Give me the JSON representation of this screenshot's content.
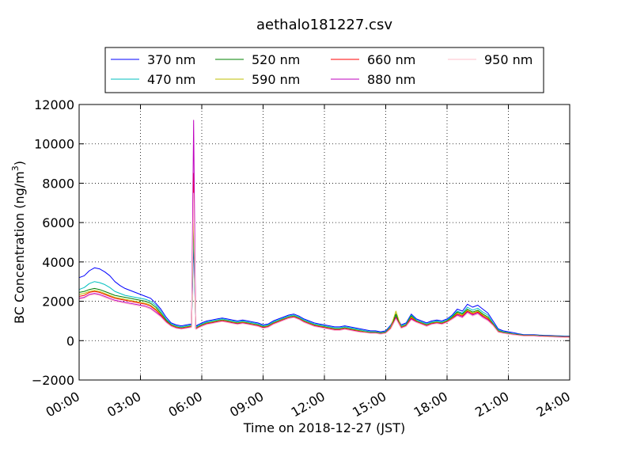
{
  "chart_data": {
    "type": "line",
    "title": "aethalo181227.csv",
    "xlabel": "Time on 2018-12-27 (JST)",
    "ylabel": "BC Concentration (ng/m",
    "ylabel_sup": "3",
    "ylabel_end": ")",
    "xlim": [
      0,
      24
    ],
    "ylim": [
      -2000,
      12000
    ],
    "x_ticks": [
      0,
      3,
      6,
      9,
      12,
      15,
      18,
      21,
      24
    ],
    "x_tick_labels": [
      "00:00",
      "03:00",
      "06:00",
      "09:00",
      "12:00",
      "15:00",
      "18:00",
      "21:00",
      "24:00"
    ],
    "y_ticks": [
      -2000,
      0,
      2000,
      4000,
      6000,
      8000,
      10000,
      12000
    ],
    "y_tick_labels": [
      "−2000",
      "0",
      "2000",
      "4000",
      "6000",
      "8000",
      "10000",
      "12000"
    ],
    "grid": true,
    "legend_position": "top (above plot)",
    "x": [
      0.0,
      0.25,
      0.5,
      0.75,
      1.0,
      1.25,
      1.5,
      1.75,
      2.0,
      2.25,
      2.5,
      2.75,
      3.0,
      3.25,
      3.5,
      3.75,
      4.0,
      4.25,
      4.5,
      4.75,
      5.0,
      5.25,
      5.5,
      5.6,
      5.7,
      5.75,
      5.8,
      5.9,
      6.0,
      6.25,
      6.5,
      6.75,
      7.0,
      7.25,
      7.5,
      7.75,
      8.0,
      8.25,
      8.5,
      8.75,
      9.0,
      9.25,
      9.5,
      9.75,
      10.0,
      10.25,
      10.5,
      10.75,
      11.0,
      11.25,
      11.5,
      11.75,
      12.0,
      12.25,
      12.5,
      12.75,
      13.0,
      13.25,
      13.5,
      13.75,
      14.0,
      14.25,
      14.5,
      14.75,
      15.0,
      15.25,
      15.5,
      15.75,
      16.0,
      16.25,
      16.5,
      16.75,
      17.0,
      17.25,
      17.5,
      17.75,
      18.0,
      18.25,
      18.5,
      18.75,
      19.0,
      19.25,
      19.5,
      19.75,
      20.0,
      20.25,
      20.5,
      20.75,
      21.0,
      21.25,
      21.5,
      21.75,
      22.0,
      22.25,
      22.5,
      22.75,
      23.0,
      23.25,
      23.5,
      23.75,
      24.0
    ],
    "series": [
      {
        "name": "370 nm",
        "color": "#0000ff",
        "values": [
          3200,
          3300,
          3550,
          3700,
          3650,
          3500,
          3300,
          3000,
          2800,
          2650,
          2550,
          2450,
          2350,
          2250,
          2150,
          1900,
          1600,
          1200,
          900,
          800,
          750,
          800,
          850,
          5000,
          800,
          750,
          800,
          850,
          900,
          1000,
          1050,
          1100,
          1150,
          1100,
          1050,
          1000,
          1050,
          1000,
          950,
          900,
          800,
          850,
          1000,
          1100,
          1200,
          1300,
          1350,
          1250,
          1100,
          1000,
          900,
          850,
          800,
          750,
          700,
          700,
          750,
          700,
          650,
          600,
          550,
          500,
          500,
          450,
          500,
          800,
          1300,
          800,
          900,
          1350,
          1100,
          1000,
          900,
          1000,
          1050,
          1000,
          1100,
          1300,
          1600,
          1500,
          1850,
          1700,
          1800,
          1600,
          1400,
          1000,
          600,
          500,
          450,
          400,
          350,
          300,
          300,
          300,
          280,
          270,
          260,
          250,
          240,
          230,
          230
        ]
      },
      {
        "name": "470 nm",
        "color": "#00bfbf",
        "values": [
          2600,
          2700,
          2900,
          3000,
          2950,
          2850,
          2700,
          2500,
          2400,
          2300,
          2250,
          2200,
          2150,
          2100,
          2000,
          1800,
          1500,
          1100,
          850,
          750,
          700,
          750,
          800,
          5600,
          700,
          700,
          750,
          800,
          850,
          950,
          1000,
          1050,
          1100,
          1050,
          1000,
          950,
          1000,
          950,
          900,
          850,
          750,
          800,
          950,
          1050,
          1150,
          1250,
          1300,
          1200,
          1050,
          950,
          850,
          800,
          750,
          700,
          650,
          650,
          700,
          650,
          600,
          550,
          500,
          450,
          450,
          400,
          450,
          750,
          1250,
          750,
          850,
          1300,
          1050,
          950,
          850,
          950,
          1000,
          950,
          1050,
          1250,
          1500,
          1400,
          1700,
          1550,
          1650,
          1450,
          1300,
          900,
          550,
          450,
          400,
          350,
          320,
          280,
          280,
          280,
          260,
          250,
          240,
          230,
          220,
          210,
          210
        ]
      },
      {
        "name": "520 nm",
        "color": "#008000",
        "values": [
          2450,
          2500,
          2600,
          2650,
          2600,
          2500,
          2400,
          2300,
          2250,
          2200,
          2150,
          2100,
          2050,
          2000,
          1900,
          1700,
          1400,
          1050,
          800,
          700,
          650,
          700,
          750,
          6200,
          650,
          650,
          700,
          750,
          800,
          900,
          950,
          1000,
          1050,
          1000,
          950,
          900,
          950,
          900,
          850,
          800,
          700,
          750,
          900,
          1000,
          1100,
          1200,
          1250,
          1150,
          1000,
          900,
          800,
          750,
          700,
          650,
          600,
          600,
          650,
          600,
          550,
          500,
          450,
          420,
          420,
          380,
          420,
          700,
          1350,
          700,
          800,
          1250,
          1000,
          900,
          800,
          900,
          950,
          900,
          1000,
          1200,
          1450,
          1350,
          1600,
          1450,
          1550,
          1350,
          1200,
          850,
          500,
          420,
          380,
          330,
          300,
          270,
          270,
          270,
          250,
          240,
          230,
          220,
          210,
          200,
          200
        ]
      },
      {
        "name": "590 nm",
        "color": "#bfbf00",
        "values": [
          2350,
          2400,
          2500,
          2550,
          2500,
          2400,
          2300,
          2200,
          2150,
          2100,
          2050,
          2000,
          1950,
          1900,
          1800,
          1600,
          1350,
          1000,
          780,
          680,
          630,
          680,
          730,
          6800,
          630,
          630,
          680,
          730,
          780,
          880,
          930,
          980,
          1030,
          980,
          930,
          880,
          930,
          880,
          830,
          780,
          680,
          730,
          880,
          980,
          1080,
          1180,
          1230,
          1130,
          980,
          880,
          780,
          730,
          680,
          630,
          580,
          580,
          630,
          580,
          530,
          480,
          430,
          400,
          400,
          360,
          400,
          700,
          1500,
          680,
          780,
          1200,
          980,
          880,
          780,
          880,
          930,
          880,
          980,
          1150,
          1400,
          1300,
          1550,
          1400,
          1500,
          1300,
          1150,
          820,
          480,
          400,
          360,
          320,
          290,
          260,
          260,
          260,
          240,
          230,
          220,
          210,
          200,
          190,
          190
        ]
      },
      {
        "name": "660 nm",
        "color": "#ff0000",
        "values": [
          2250,
          2300,
          2450,
          2500,
          2450,
          2350,
          2250,
          2150,
          2100,
          2050,
          2000,
          1950,
          1900,
          1850,
          1750,
          1550,
          1300,
          980,
          760,
          660,
          620,
          660,
          710,
          8500,
          620,
          620,
          660,
          710,
          760,
          860,
          910,
          960,
          1010,
          960,
          910,
          860,
          910,
          860,
          810,
          760,
          660,
          710,
          860,
          960,
          1060,
          1160,
          1210,
          1110,
          960,
          860,
          760,
          710,
          660,
          610,
          560,
          560,
          610,
          560,
          510,
          460,
          420,
          390,
          390,
          350,
          390,
          650,
          1200,
          660,
          760,
          1150,
          960,
          860,
          760,
          860,
          910,
          860,
          960,
          1120,
          1350,
          1250,
          1500,
          1350,
          1450,
          1250,
          1100,
          800,
          460,
          390,
          350,
          310,
          280,
          250,
          250,
          250,
          230,
          220,
          210,
          200,
          190,
          180,
          180
        ]
      },
      {
        "name": "880 nm",
        "color": "#bf00bf",
        "values": [
          2150,
          2200,
          2350,
          2400,
          2350,
          2250,
          2150,
          2050,
          2000,
          1950,
          1900,
          1850,
          1800,
          1750,
          1650,
          1450,
          1250,
          950,
          740,
          640,
          600,
          640,
          690,
          11200,
          600,
          600,
          640,
          690,
          740,
          840,
          890,
          940,
          990,
          940,
          890,
          840,
          890,
          840,
          790,
          740,
          640,
          690,
          840,
          940,
          1040,
          1140,
          1190,
          1090,
          940,
          840,
          740,
          690,
          640,
          590,
          540,
          540,
          590,
          540,
          490,
          440,
          410,
          380,
          380,
          340,
          380,
          620,
          1150,
          640,
          740,
          1100,
          940,
          840,
          740,
          840,
          890,
          840,
          940,
          1100,
          1300,
          1200,
          1450,
          1300,
          1400,
          1200,
          1050,
          780,
          440,
          380,
          340,
          300,
          270,
          240,
          240,
          240,
          220,
          210,
          200,
          190,
          180,
          170,
          170
        ]
      },
      {
        "name": "950 nm",
        "color": "#ffc0cb",
        "values": [
          2100,
          2150,
          2300,
          2350,
          2300,
          2200,
          2100,
          2000,
          1950,
          1900,
          1850,
          1800,
          1750,
          1700,
          1600,
          1400,
          1200,
          920,
          720,
          620,
          580,
          620,
          670,
          7500,
          580,
          580,
          620,
          670,
          720,
          820,
          870,
          920,
          970,
          920,
          870,
          820,
          870,
          820,
          770,
          720,
          620,
          670,
          820,
          920,
          1020,
          1120,
          1170,
          1070,
          920,
          820,
          720,
          670,
          620,
          570,
          520,
          520,
          570,
          520,
          470,
          420,
          400,
          370,
          370,
          330,
          370,
          600,
          1100,
          620,
          720,
          1050,
          920,
          820,
          720,
          820,
          870,
          820,
          920,
          1080,
          1250,
          1150,
          1400,
          1250,
          1350,
          1150,
          1000,
          760,
          420,
          370,
          330,
          290,
          260,
          230,
          230,
          230,
          210,
          200,
          190,
          180,
          170,
          160,
          160
        ]
      }
    ]
  }
}
